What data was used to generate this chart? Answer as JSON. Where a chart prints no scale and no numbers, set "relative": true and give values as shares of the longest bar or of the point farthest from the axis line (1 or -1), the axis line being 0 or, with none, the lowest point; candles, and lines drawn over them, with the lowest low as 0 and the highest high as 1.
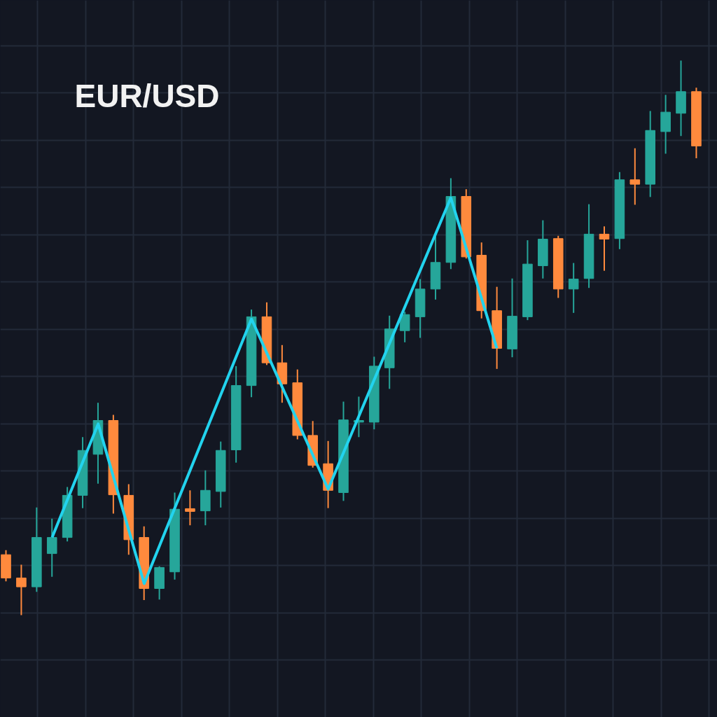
{
  "chart_data": [
    {
      "type": "candlestick",
      "title": "EUR/USD",
      "relative": true,
      "grid": true,
      "tick_labels": false,
      "categories": [
        null,
        null,
        null,
        null,
        null,
        null,
        null,
        null,
        null,
        null,
        null,
        null,
        null,
        null,
        null,
        null,
        null,
        null,
        null,
        null,
        null,
        null,
        null,
        null,
        null,
        null,
        null,
        null,
        null,
        null,
        null,
        null,
        null,
        null,
        null,
        null,
        null,
        null,
        null,
        null,
        null,
        null,
        null,
        null,
        null,
        null
      ],
      "ohlc": [
        [
          0.109,
          0.117,
          0.061,
          0.067
        ],
        [
          0.067,
          0.091,
          0,
          0.051
        ],
        [
          0.051,
          0.194,
          0.042,
          0.14
        ],
        [
          0.111,
          0.174,
          0.069,
          0.14
        ],
        [
          0.14,
          0.231,
          0.133,
          0.216
        ],
        [
          0.216,
          0.321,
          0.193,
          0.297
        ],
        [
          0.29,
          0.383,
          0.237,
          0.351
        ],
        [
          0.351,
          0.361,
          0.183,
          0.217
        ],
        [
          0.216,
          0.236,
          0.109,
          0.136
        ],
        [
          0.14,
          0.16,
          0.027,
          0.048
        ],
        [
          0.048,
          0.088,
          0.028,
          0.086
        ],
        [
          0.078,
          0.221,
          0.064,
          0.191
        ],
        [
          0.192,
          0.225,
          0.162,
          0.187
        ],
        [
          0.188,
          0.261,
          0.162,
          0.225
        ],
        [
          0.223,
          0.313,
          0.194,
          0.297
        ],
        [
          0.298,
          0.449,
          0.275,
          0.414
        ],
        [
          0.414,
          0.551,
          0.393,
          0.538
        ],
        [
          0.538,
          0.564,
          0.451,
          0.455
        ],
        [
          0.455,
          0.487,
          0.383,
          0.417
        ],
        [
          0.419,
          0.443,
          0.317,
          0.324
        ],
        [
          0.324,
          0.35,
          0.266,
          0.27
        ],
        [
          0.273,
          0.314,
          0.193,
          0.225
        ],
        [
          0.221,
          0.385,
          0.206,
          0.352
        ],
        [
          0.348,
          0.394,
          0.321,
          0.351
        ],
        [
          0.348,
          0.466,
          0.335,
          0.449
        ],
        [
          0.446,
          0.54,
          0.408,
          0.516
        ],
        [
          0.513,
          0.547,
          0.492,
          0.542
        ],
        [
          0.538,
          0.606,
          0.5,
          0.588
        ],
        [
          0.588,
          0.683,
          0.569,
          0.636
        ],
        [
          0.636,
          0.788,
          0.624,
          0.755
        ],
        [
          0.755,
          0.768,
          0.643,
          0.646
        ],
        [
          0.649,
          0.672,
          0.535,
          0.549
        ],
        [
          0.549,
          0.592,
          0.444,
          0.481
        ],
        [
          0.48,
          0.607,
          0.465,
          0.539
        ],
        [
          0.538,
          0.676,
          0.532,
          0.633
        ],
        [
          0.63,
          0.712,
          0.607,
          0.678
        ],
        [
          0.679,
          0.684,
          0.572,
          0.588
        ],
        [
          0.588,
          0.635,
          0.545,
          0.606
        ],
        [
          0.607,
          0.741,
          0.59,
          0.687
        ],
        [
          0.687,
          0.701,
          0.621,
          0.678
        ],
        [
          0.679,
          0.799,
          0.66,
          0.785
        ],
        [
          0.785,
          0.842,
          0.74,
          0.777
        ],
        [
          0.777,
          0.909,
          0.754,
          0.874
        ],
        [
          0.872,
          0.938,
          0.832,
          0.907
        ],
        [
          0.905,
          1,
          0.864,
          0.944
        ],
        [
          0.944,
          0.951,
          0.824,
          0.846
        ]
      ],
      "colors": [
        "#ff8a3d",
        "#ff8a3d",
        "#26a69a",
        "#26a69a",
        "#26a69a",
        "#26a69a",
        "#26a69a",
        "#ff8a3d",
        "#ff8a3d",
        "#ff8a3d",
        "#26a69a",
        "#26a69a",
        "#ff8a3d",
        "#26a69a",
        "#26a69a",
        "#26a69a",
        "#26a69a",
        "#ff8a3d",
        "#ff8a3d",
        "#ff8a3d",
        "#ff8a3d",
        "#ff8a3d",
        "#26a69a",
        "#26a69a",
        "#26a69a",
        "#26a69a",
        "#26a69a",
        "#26a69a",
        "#26a69a",
        "#26a69a",
        "#ff8a3d",
        "#ff8a3d",
        "#ff8a3d",
        "#26a69a",
        "#26a69a",
        "#26a69a",
        "#ff8a3d",
        "#26a69a",
        "#26a69a",
        "#ff8a3d",
        "#26a69a",
        "#ff8a3d",
        "#26a69a",
        "#26a69a",
        "#26a69a",
        "#ff8a3d"
      ]
    },
    {
      "type": "line",
      "relative": true,
      "tick_labels": false,
      "categories": [
        null,
        null,
        null,
        null,
        null,
        null,
        null,
        null,
        null,
        null,
        null,
        null,
        null,
        null,
        null,
        null,
        null,
        null,
        null,
        null,
        null,
        null,
        null,
        null,
        null,
        null,
        null,
        null,
        null,
        null
      ],
      "series": [
        {
          "color": "#22d3ee",
          "values": [
            0.12,
            null,
            null,
            0.414,
            null,
            null,
            0,
            null,
            null,
            null,
            null,
            null,
            null,
            0.686,
            null,
            null,
            null,
            null,
            0.245,
            null,
            null,
            null,
            null,
            null,
            null,
            null,
            1,
            null,
            null,
            0.61
          ]
        }
      ]
    }
  ]
}
